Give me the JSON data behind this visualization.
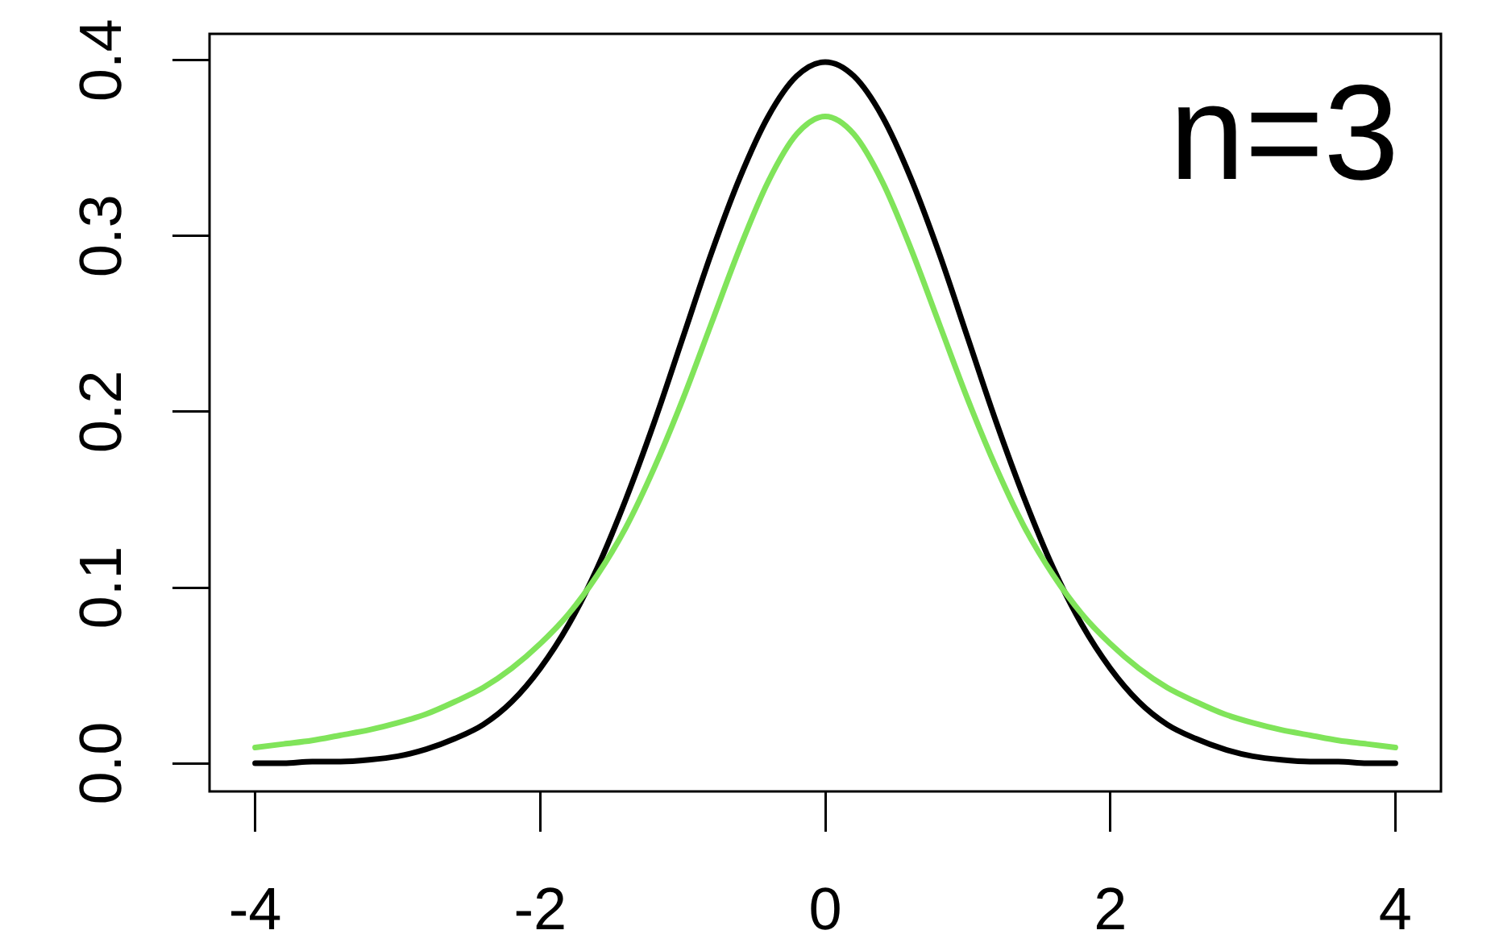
{
  "chart_data": {
    "type": "line",
    "annotations": [
      "n=3"
    ],
    "x": [
      -4,
      -3.8,
      -3.6,
      -3.4,
      -3.2,
      -3,
      -2.8,
      -2.6,
      -2.4,
      -2.2,
      -2,
      -1.8,
      -1.6,
      -1.4,
      -1.2,
      -1,
      -0.8,
      -0.6,
      -0.4,
      -0.2,
      0,
      0.2,
      0.4,
      0.6,
      0.8,
      1,
      1.2,
      1.4,
      1.6,
      1.8,
      2,
      2.2,
      2.4,
      2.6,
      2.8,
      3,
      3.2,
      3.4,
      3.6,
      3.8,
      4
    ],
    "series": [
      {
        "color": "#000000",
        "values": [
          0,
          0,
          0.001,
          0.001,
          0.002,
          0.004,
          0.008,
          0.014,
          0.022,
          0.035,
          0.054,
          0.079,
          0.111,
          0.15,
          0.194,
          0.242,
          0.29,
          0.333,
          0.368,
          0.391,
          0.399,
          0.391,
          0.368,
          0.333,
          0.29,
          0.242,
          0.194,
          0.15,
          0.111,
          0.079,
          0.054,
          0.035,
          0.022,
          0.014,
          0.008,
          0.004,
          0.002,
          0.001,
          0.001,
          0,
          0
        ]
      },
      {
        "color": "#80e45a",
        "values": [
          0.009,
          0.011,
          0.013,
          0.016,
          0.019,
          0.023,
          0.028,
          0.035,
          0.043,
          0.054,
          0.068,
          0.085,
          0.107,
          0.134,
          0.168,
          0.207,
          0.25,
          0.293,
          0.331,
          0.358,
          0.368,
          0.358,
          0.331,
          0.293,
          0.25,
          0.207,
          0.168,
          0.134,
          0.107,
          0.085,
          0.068,
          0.054,
          0.043,
          0.035,
          0.028,
          0.023,
          0.019,
          0.016,
          0.013,
          0.011,
          0.009
        ]
      }
    ],
    "xlim": [
      -4.32,
      4.32
    ],
    "xticks": [
      -4,
      -2,
      0,
      2,
      4
    ],
    "ylim": [
      -0.016,
      0.415
    ],
    "yticks": [
      {
        "value": 0,
        "label": "0.0"
      },
      0.1,
      0.2,
      0.3,
      0.4
    ]
  }
}
